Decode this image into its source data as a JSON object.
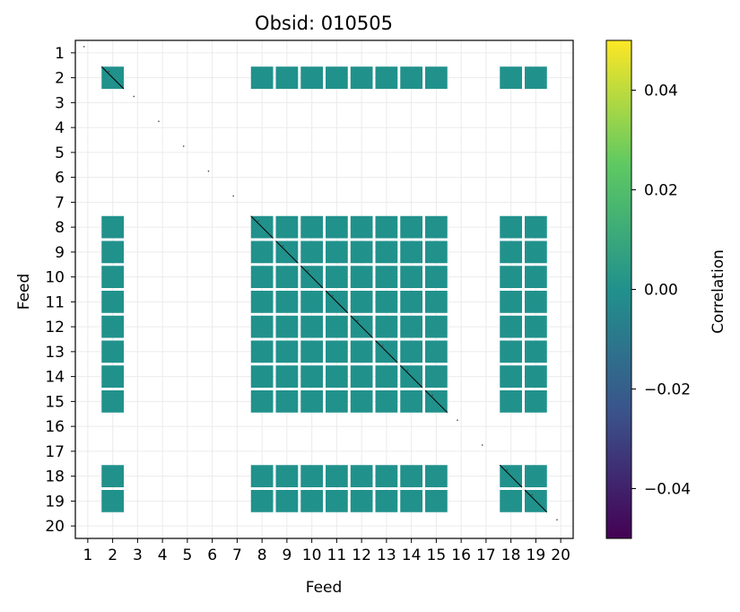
{
  "chart_data": {
    "type": "heatmap",
    "title": "Obsid: 010505",
    "xlabel": "Feed",
    "ylabel": "Feed",
    "feeds": [
      "1",
      "2",
      "3",
      "4",
      "5",
      "6",
      "7",
      "8",
      "9",
      "10",
      "11",
      "12",
      "13",
      "14",
      "15",
      "16",
      "17",
      "18",
      "19",
      "20"
    ],
    "x_tick_labels": [
      "1",
      "2",
      "3",
      "4",
      "5",
      "6",
      "7",
      "8",
      "9",
      "10",
      "11",
      "12",
      "13",
      "14",
      "15",
      "16",
      "17",
      "18",
      "19",
      "20"
    ],
    "y_tick_labels": [
      "1",
      "2",
      "3",
      "4",
      "5",
      "6",
      "7",
      "8",
      "9",
      "10",
      "11",
      "12",
      "13",
      "14",
      "15",
      "16",
      "17",
      "18",
      "19",
      "20"
    ],
    "active_feeds": [
      2,
      8,
      9,
      10,
      11,
      12,
      13,
      14,
      15,
      18,
      19
    ],
    "correlation_value_filled_cells": 0.0,
    "grid": true,
    "colorbar": {
      "label": "Correlation",
      "colormap": "viridis",
      "vmin": -0.05,
      "vmax": 0.05,
      "ticks": [
        0.04,
        0.02,
        0.0,
        -0.02,
        -0.04
      ],
      "tick_labels": [
        "0.04",
        "0.02",
        "0.00",
        "−0.02",
        "−0.04"
      ],
      "colors": [
        "#fde725",
        "#5ec962",
        "#21918c",
        "#3b528b",
        "#440154"
      ]
    },
    "fill_color": "#21918c",
    "diagonal_line_color": "#000000"
  }
}
